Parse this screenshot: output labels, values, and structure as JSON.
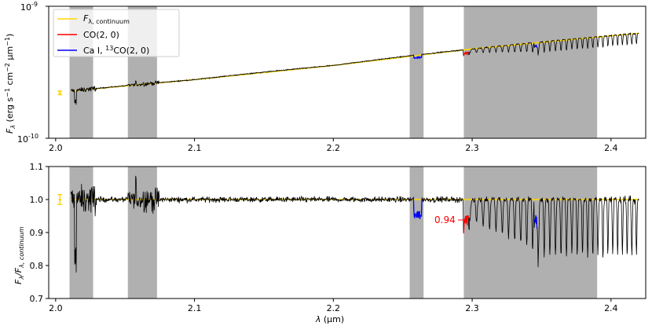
{
  "chart_data": [
    {
      "type": "line",
      "panel": "top",
      "yscale": "log",
      "xlim": [
        1.995,
        2.425
      ],
      "ylim": [
        1e-10,
        1e-09
      ],
      "ylabel": "F_λ (erg s^-1 cm^-2 μm^-1)",
      "ytick_labels": {
        "top": "10",
        "top_exp": "-9",
        "bottom": "10",
        "bottom_exp": "-10"
      },
      "xtick_values": [
        2.0,
        2.1,
        2.2,
        2.3,
        2.4
      ],
      "xtick_labels": [
        "2.0",
        "2.1",
        "2.2",
        "2.3",
        "2.4"
      ],
      "shaded_regions": [
        [
          2.01,
          2.027
        ],
        [
          2.052,
          2.073
        ],
        [
          2.255,
          2.265
        ],
        [
          2.294,
          2.39
        ]
      ],
      "legend": {
        "placement": "top-left",
        "entries": [
          {
            "label_main": "F",
            "label_sub": "λ, continuum",
            "color": "#FFD700"
          },
          {
            "label_main": "CO(2, 0)",
            "color": "#FF0000"
          },
          {
            "label_main": "Ca I,  ",
            "label_sup": "13",
            "label_tail": "CO(2, 0)",
            "color": "#0000FF"
          }
        ]
      },
      "series": [
        {
          "name": "continuum",
          "color": "#FFD700",
          "x": [
            2.011,
            2.1,
            2.2,
            2.3,
            2.42
          ],
          "y": [
            2.28e-10,
            2.78e-10,
            3.56e-10,
            4.75e-10,
            6.25e-10
          ]
        },
        {
          "name": "spectrum",
          "color": "#000000",
          "x": [
            2.011,
            2.42
          ],
          "y": [
            2.28e-10,
            6.25e-10
          ]
        },
        {
          "name": "CO(2, 0)",
          "color": "#FF0000",
          "x": [
            2.2935,
            2.2975
          ]
        },
        {
          "name": "Ca I, 13CO(2, 0)",
          "color": "#0000FF",
          "x": [
            2.257,
            2.264,
            2.345,
            2.347
          ]
        }
      ],
      "errorbar": {
        "x": 2.003,
        "y": 2.2e-10,
        "yerr_low": 2.14e-10,
        "yerr_high": 2.28e-10,
        "color": "#FFD700"
      }
    },
    {
      "type": "line",
      "panel": "bottom",
      "xlim": [
        1.995,
        2.425
      ],
      "ylim": [
        0.7,
        1.1
      ],
      "xlabel": "λ (μm)",
      "ylabel": "F_λ/F_λ, continuum",
      "xtick_values": [
        2.0,
        2.1,
        2.2,
        2.3,
        2.4
      ],
      "xtick_labels": [
        "2.0",
        "2.1",
        "2.2",
        "2.3",
        "2.4"
      ],
      "ytick_values": [
        0.7,
        0.8,
        0.9,
        1.0,
        1.1
      ],
      "ytick_labels": [
        "0.7",
        "0.8",
        "0.9",
        "1.0",
        "1.1"
      ],
      "shaded_regions": [
        [
          2.01,
          2.027
        ],
        [
          2.052,
          2.073
        ],
        [
          2.255,
          2.265
        ],
        [
          2.294,
          2.39
        ]
      ],
      "reference_line": {
        "y": 1.0,
        "color": "#FFD700"
      },
      "annotation": {
        "text": "0.94",
        "x": 2.2935,
        "y": 0.94,
        "color": "#FF0000"
      },
      "errorbar": {
        "x": 2.003,
        "y": 1.0,
        "yerr_low": 0.985,
        "yerr_high": 1.015,
        "color": "#FFD700"
      }
    }
  ]
}
